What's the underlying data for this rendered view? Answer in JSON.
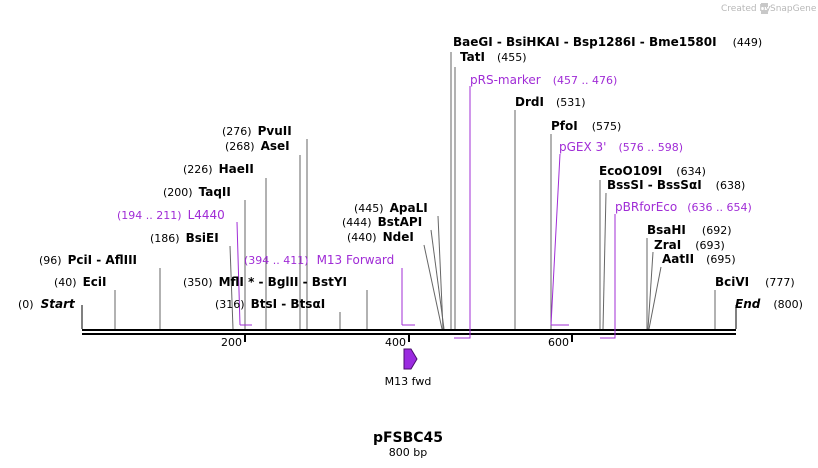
{
  "header": {
    "credit_prefix": "Created by",
    "credit_brand": "SnapGene"
  },
  "map": {
    "name": "pFSBC45",
    "length_label": "800 bp",
    "ticks": [
      "200",
      "400",
      "600"
    ],
    "start_label": "Start",
    "start_pos": "(0)",
    "end_label": "End",
    "end_pos": "(800)"
  },
  "enzymes": [
    {
      "id": "baegi",
      "label": "BaeGI  - BsiHKAI  - Bsp1286I  - Bme1580I",
      "pos": "(449)"
    },
    {
      "id": "tati",
      "label": "TatI",
      "pos": "(455)"
    },
    {
      "id": "drdi",
      "label": "DrdI",
      "pos": "(531)"
    },
    {
      "id": "pfoi",
      "label": "PfoI",
      "pos": "(575)"
    },
    {
      "id": "ecoo109i",
      "label": "EcoO109I",
      "pos": "(634)"
    },
    {
      "id": "bsssi",
      "label": "BssSI  - BssSαI",
      "pos": "(638)"
    },
    {
      "id": "bsahi",
      "label": "BsaHI",
      "pos": "(692)"
    },
    {
      "id": "zrai",
      "label": "ZraI",
      "pos": "(693)"
    },
    {
      "id": "aatii",
      "label": "AatII",
      "pos": "(695)"
    },
    {
      "id": "bcivi",
      "label": "BciVI",
      "pos": "(777)"
    },
    {
      "id": "pvuii",
      "label": "PvuII",
      "pos": "(276)"
    },
    {
      "id": "asei",
      "label": "AseI",
      "pos": "(268)"
    },
    {
      "id": "haeii",
      "label": "HaeII",
      "pos": "(226)"
    },
    {
      "id": "taqii",
      "label": "TaqII",
      "pos": "(200)"
    },
    {
      "id": "bsiei",
      "label": "BsiEI",
      "pos": "(186)"
    },
    {
      "id": "pcii",
      "label": "PciI  - AflIII",
      "pos": "(96)"
    },
    {
      "id": "ecii",
      "label": "EciI",
      "pos": "(40)"
    },
    {
      "id": "mfli",
      "label": "MflI * - BglII  - BstYI",
      "pos": "(350)"
    },
    {
      "id": "btsi",
      "label": "BtsI  - BtsαI",
      "pos": "(316)"
    },
    {
      "id": "apali",
      "label": "ApaLI",
      "pos": "(445)"
    },
    {
      "id": "bstapi",
      "label": "BstAPI",
      "pos": "(444)"
    },
    {
      "id": "ndei",
      "label": "NdeI",
      "pos": "(440)"
    }
  ],
  "features": [
    {
      "id": "l4440",
      "label": "L4440",
      "range": "(194 .. 211)"
    },
    {
      "id": "m13forward",
      "label": "M13 Forward",
      "range": "(394 .. 411)"
    },
    {
      "id": "prsmarker",
      "label": "pRS-marker",
      "range": "(457 .. 476)"
    },
    {
      "id": "pgex3",
      "label": "pGEX 3'",
      "range": "(576 .. 598)"
    },
    {
      "id": "pbrforeco",
      "label": "pBRforEco",
      "range": "(636 .. 654)"
    }
  ],
  "primer_arrow": {
    "label": "M13 fwd"
  },
  "colors": {
    "feature": "#a02cd6",
    "backbone": "#000000",
    "arrow_fill": "#9b2be0"
  }
}
